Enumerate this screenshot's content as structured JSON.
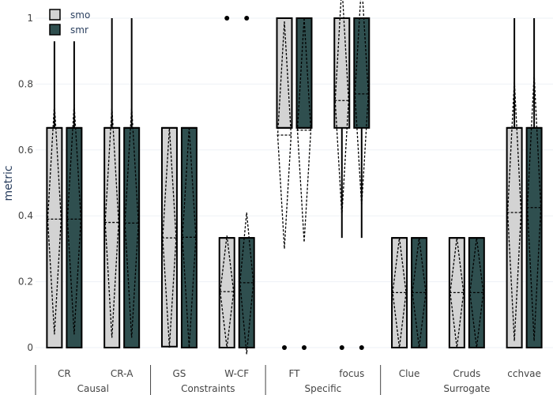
{
  "chart_data": {
    "type": "box",
    "ylabel": "metric",
    "ylim": [
      0,
      1.05
    ],
    "yticks": [
      0,
      0.2,
      0.4,
      0.6,
      0.8,
      1
    ],
    "ytick_labels": [
      "0",
      "0.2",
      "0.4",
      "0.6",
      "0.8",
      "1"
    ],
    "grid": true,
    "legend": {
      "placement": "top-left",
      "entries": [
        {
          "name": "smo",
          "color": "#d3d3d3"
        },
        {
          "name": "smr",
          "color": "#2f4f4f"
        }
      ]
    },
    "groups": [
      {
        "label": "Causal",
        "categories": [
          "CR",
          "CR-A"
        ]
      },
      {
        "label": "Constraints",
        "categories": [
          "GS",
          "W-CF"
        ]
      },
      {
        "label": "Specific",
        "categories": [
          "FT",
          "focus"
        ]
      },
      {
        "label": "Surrogate",
        "categories": [
          "Clue",
          "Cruds",
          "cchvae"
        ]
      }
    ],
    "categories": [
      "CR",
      "CR-A",
      "GS",
      "W-CF",
      "FT",
      "focus",
      "Clue",
      "Cruds",
      "cchvae"
    ],
    "series": [
      {
        "name": "smo",
        "color": "#d3d3d3",
        "boxes": [
          {
            "min": 0,
            "q1": 0,
            "median": 0.667,
            "q3": 0.667,
            "max": 0.93,
            "mean": 0.39,
            "sd_low": 0.04,
            "sd_high": 0.74
          },
          {
            "min": 0,
            "q1": 0,
            "median": 0.667,
            "q3": 0.667,
            "max": 1.0,
            "mean": 0.38,
            "sd_low": 0.03,
            "sd_high": 0.73
          },
          {
            "min": 0,
            "q1": 0.003,
            "median": 0.667,
            "q3": 0.667,
            "max": 0.667,
            "mean": 0.333,
            "sd_low": 0.003,
            "sd_high": 0.667
          },
          {
            "min": 0,
            "q1": 0,
            "median": 0.333,
            "q3": 0.333,
            "max": 0.333,
            "mean": 0.17,
            "sd_low": 0.0,
            "sd_high": 0.34,
            "outliers": [
              1.0
            ]
          },
          {
            "min": 0.667,
            "q1": 0.667,
            "median": 0.667,
            "q3": 1.0,
            "max": 1.0,
            "mean": 0.645,
            "sd_low": 0.3,
            "sd_high": 0.99,
            "outliers": [
              0
            ]
          },
          {
            "min": 0.333,
            "q1": 0.667,
            "median": 1.0,
            "q3": 1.0,
            "max": 1.0,
            "mean": 0.75,
            "sd_low": 0.4,
            "sd_high": 1.1,
            "outliers": [
              0
            ]
          },
          {
            "min": 0,
            "q1": 0,
            "median": 0.333,
            "q3": 0.333,
            "max": 0.333,
            "mean": 0.167,
            "sd_low": 0.0,
            "sd_high": 0.333
          },
          {
            "min": 0,
            "q1": 0,
            "median": 0.333,
            "q3": 0.333,
            "max": 0.333,
            "mean": 0.167,
            "sd_low": 0.0,
            "sd_high": 0.333
          },
          {
            "min": 0,
            "q1": 0,
            "median": 0.667,
            "q3": 0.667,
            "max": 1.0,
            "mean": 0.41,
            "sd_low": 0.02,
            "sd_high": 0.81
          }
        ]
      },
      {
        "name": "smr",
        "color": "#2f4f4f",
        "boxes": [
          {
            "min": 0,
            "q1": 0,
            "median": 0.667,
            "q3": 0.667,
            "max": 0.93,
            "mean": 0.39,
            "sd_low": 0.04,
            "sd_high": 0.74
          },
          {
            "min": 0,
            "q1": 0,
            "median": 0.667,
            "q3": 0.667,
            "max": 1.0,
            "mean": 0.378,
            "sd_low": 0.03,
            "sd_high": 0.73
          },
          {
            "min": 0,
            "q1": 0,
            "median": 0.667,
            "q3": 0.667,
            "max": 0.667,
            "mean": 0.335,
            "sd_low": 0.0,
            "sd_high": 0.667
          },
          {
            "min": 0,
            "q1": 0,
            "median": 0.333,
            "q3": 0.333,
            "max": 0.333,
            "mean": 0.197,
            "sd_low": -0.02,
            "sd_high": 0.41,
            "outliers": [
              1.0
            ]
          },
          {
            "min": 0.667,
            "q1": 0.667,
            "median": 0.667,
            "q3": 1.0,
            "max": 1.0,
            "mean": 0.66,
            "sd_low": 0.32,
            "sd_high": 1.0,
            "outliers": [
              0
            ]
          },
          {
            "min": 0.333,
            "q1": 0.667,
            "median": 1.0,
            "q3": 1.0,
            "max": 1.0,
            "mean": 0.77,
            "sd_low": 0.43,
            "sd_high": 1.11,
            "outliers": [
              0
            ]
          },
          {
            "min": 0,
            "q1": 0,
            "median": 0.333,
            "q3": 0.333,
            "max": 0.333,
            "mean": 0.167,
            "sd_low": 0.0,
            "sd_high": 0.333
          },
          {
            "min": 0,
            "q1": 0,
            "median": 0.333,
            "q3": 0.333,
            "max": 0.333,
            "mean": 0.167,
            "sd_low": 0.0,
            "sd_high": 0.333
          },
          {
            "min": 0,
            "q1": 0,
            "median": 0.667,
            "q3": 0.667,
            "max": 1.0,
            "mean": 0.425,
            "sd_low": 0.02,
            "sd_high": 0.83
          }
        ]
      }
    ]
  }
}
